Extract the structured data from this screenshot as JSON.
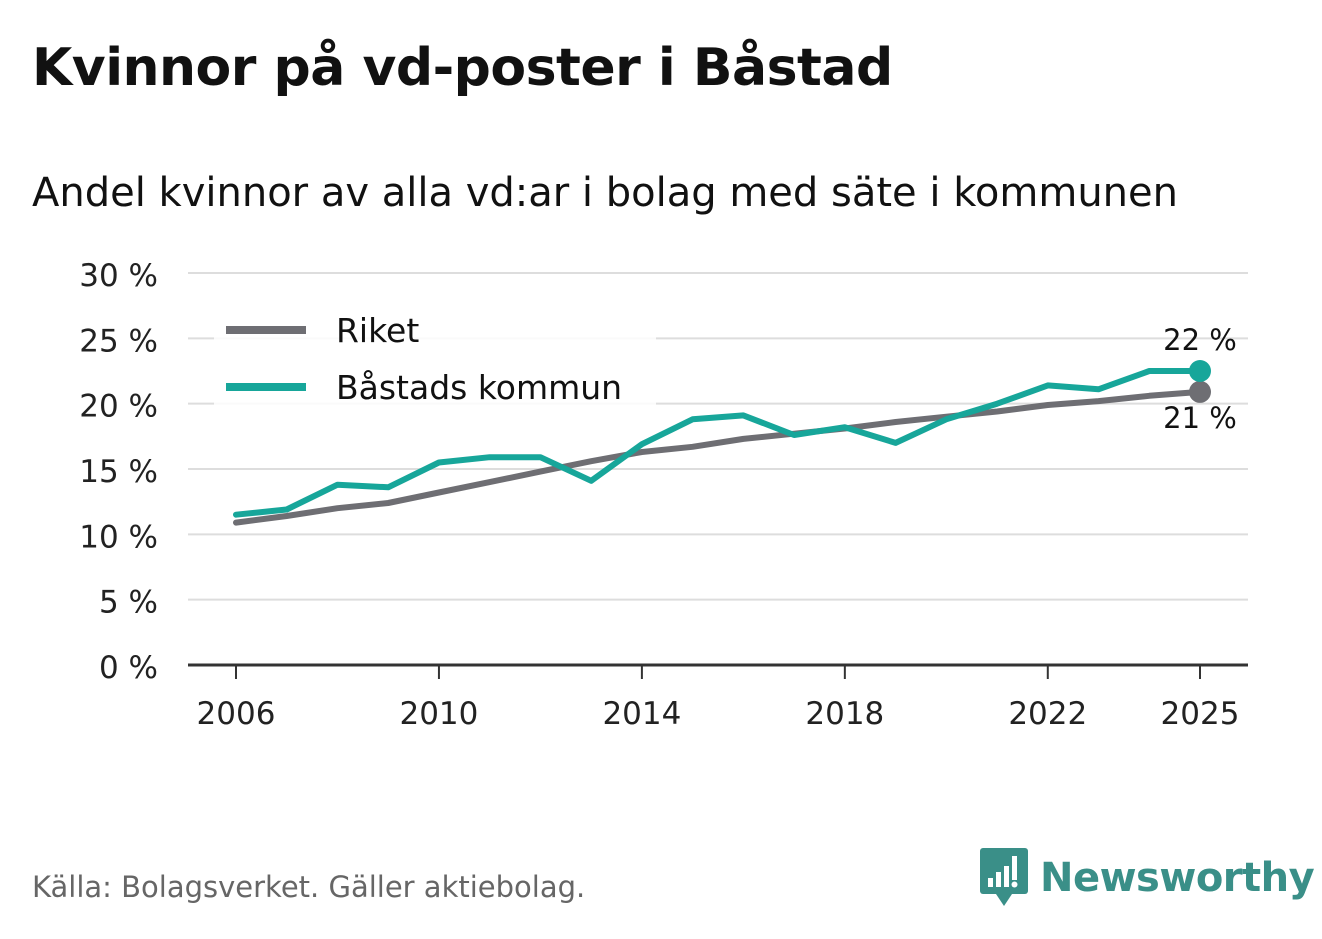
{
  "title": "Kvinnor på vd-poster i Båstad",
  "subtitle": "Andel kvinnor av alla vd:ar i bolag med säte i kommunen",
  "source": "Källa: Bolagsverket. Gäller aktiebolag.",
  "brand": "Newsworthy",
  "colors": {
    "riket": "#6e6e73",
    "bastad": "#17a69a",
    "grid": "#dddddd",
    "axis": "#333333"
  },
  "chart_data": {
    "type": "line",
    "x": [
      2006,
      2007,
      2008,
      2009,
      2010,
      2011,
      2012,
      2013,
      2014,
      2015,
      2016,
      2017,
      2018,
      2019,
      2020,
      2021,
      2022,
      2023,
      2024,
      2025
    ],
    "series": [
      {
        "name": "Riket",
        "color": "#6e6e73",
        "values": [
          10.9,
          11.4,
          12.0,
          12.4,
          13.2,
          14.0,
          14.8,
          15.6,
          16.3,
          16.7,
          17.3,
          17.7,
          18.1,
          18.6,
          19.0,
          19.4,
          19.9,
          20.2,
          20.6,
          20.9
        ],
        "end_label": "21 %"
      },
      {
        "name": "Båstads kommun",
        "color": "#17a69a",
        "values": [
          11.5,
          11.9,
          13.8,
          13.6,
          15.5,
          15.9,
          15.9,
          14.1,
          16.9,
          18.8,
          19.1,
          17.6,
          18.2,
          17.0,
          18.8,
          20.0,
          21.4,
          21.1,
          22.5,
          22.5
        ],
        "end_label": "22 %"
      }
    ],
    "ylim": [
      0,
      30
    ],
    "yticks": [
      0,
      5,
      10,
      15,
      20,
      25,
      30
    ],
    "ytick_labels": [
      "0 %",
      "5 %",
      "10 %",
      "15 %",
      "20 %",
      "25 %",
      "30 %"
    ],
    "xticks": [
      2006,
      2010,
      2014,
      2018,
      2022,
      2025
    ],
    "xtick_labels": [
      "2006",
      "2010",
      "2014",
      "2018",
      "2022",
      "2025"
    ],
    "xlim": [
      2006,
      2025
    ],
    "legend": [
      "Riket",
      "Båstads kommun"
    ],
    "legend_position": "top-left",
    "grid": true,
    "title": "Kvinnor på vd-poster i Båstad",
    "xlabel": "",
    "ylabel": ""
  }
}
